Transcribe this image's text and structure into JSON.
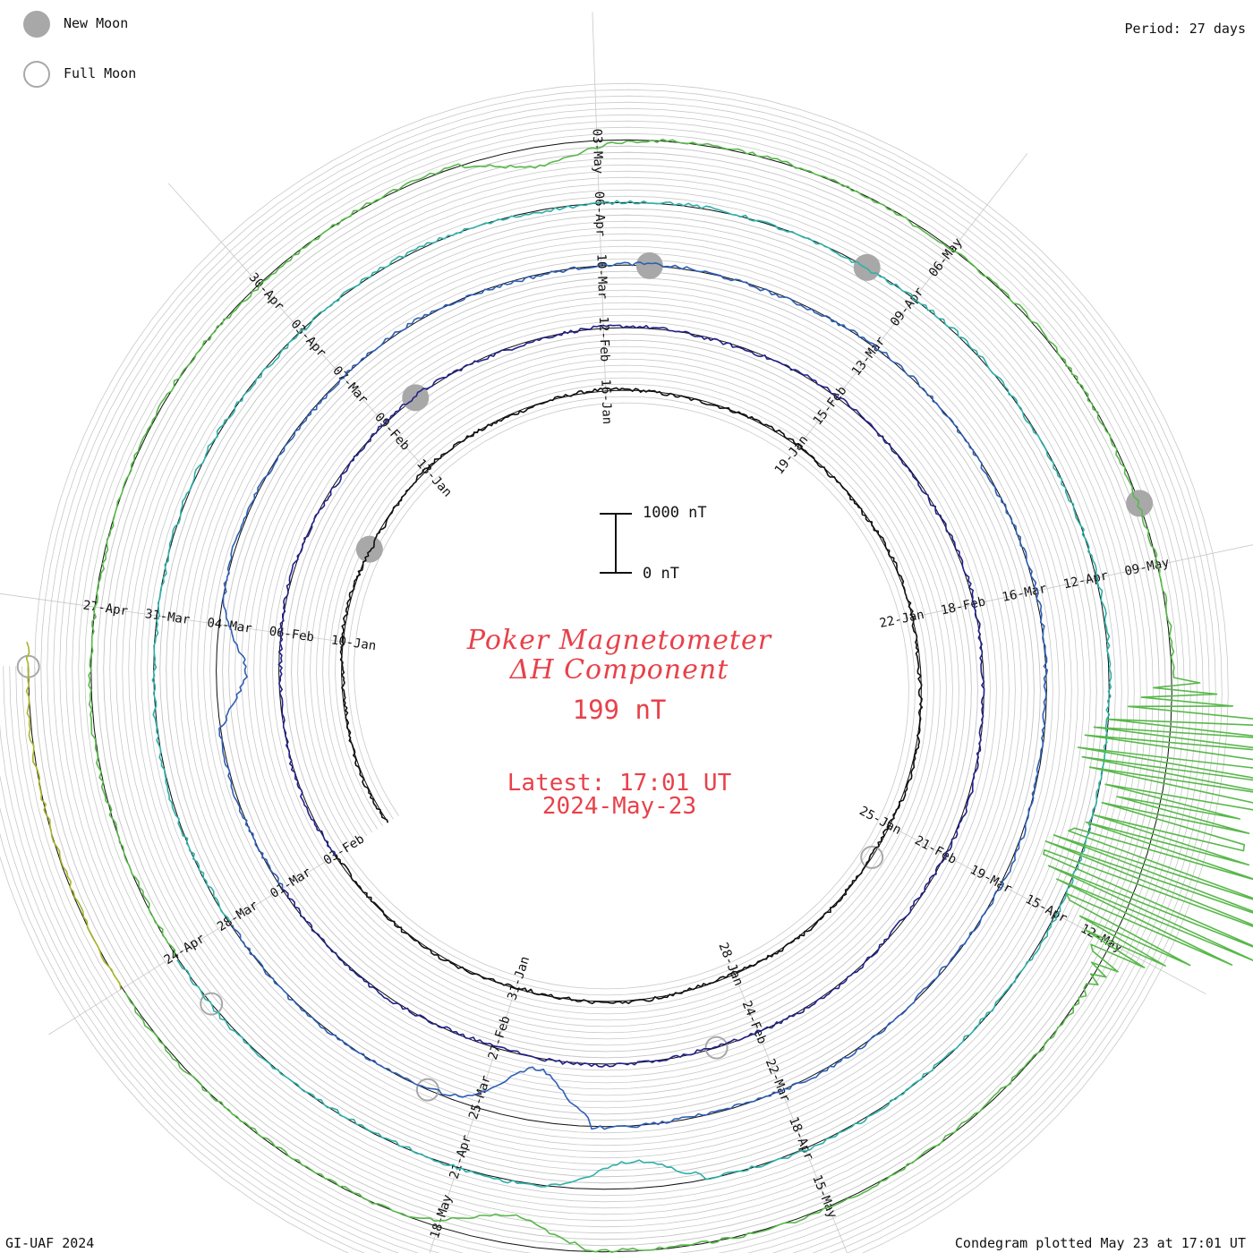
{
  "legend": {
    "new_moon_label": "New Moon",
    "full_moon_label": "Full Moon",
    "new_moon_color": "#a8a8a8",
    "full_moon_color": "#a8a8a8"
  },
  "period_label": "Period: 27 days",
  "footer_left": "GI-UAF 2024",
  "footer_right": "Condegram plotted May 23 at 17:01 UT",
  "center": {
    "title": "Poker Magnetometer",
    "component": "ΔH Component",
    "value": "199 nT",
    "latest": "Latest: 17:01 UT",
    "date": "2024-May-23",
    "color": "#e8414a"
  },
  "scale_bar": {
    "top_label": "1000 nT",
    "bottom_label": "0 nT"
  },
  "chart_data": {
    "type": "line",
    "style": "condegram (spiral)",
    "period_days": 27,
    "units": "nT",
    "start_date": "2024-01-07",
    "end_date": "2024-05-23T17:01",
    "scale_nT": [
      0,
      1000
    ],
    "colors": [
      "#111111",
      "#22228a",
      "#2f5fb5",
      "#2fb0a8",
      "#58b84a",
      "#a8b52a",
      "#b8901a",
      "#c0601a",
      "#c0280f"
    ],
    "date_labels": [
      "10-Jan",
      "13-Jan",
      "16-Jan",
      "19-Jan",
      "22-Jan",
      "25-Jan",
      "28-Jan",
      "31-Jan",
      "03-Feb",
      "06-Feb",
      "09-Feb",
      "12-Feb",
      "15-Feb",
      "18-Feb",
      "21-Feb",
      "24-Feb",
      "27-Feb",
      "01-Mar",
      "04-Mar",
      "07-Mar",
      "10-Mar",
      "13-Mar",
      "16-Mar",
      "19-Mar",
      "22-Mar",
      "25-Mar",
      "28-Mar",
      "31-Mar",
      "03-Apr",
      "06-Apr",
      "09-Apr",
      "12-Apr",
      "15-Apr",
      "18-Apr",
      "21-Apr",
      "24-Apr",
      "27-Apr",
      "30-Apr",
      "03-May",
      "06-May",
      "09-May",
      "12-May",
      "15-May",
      "18-May"
    ],
    "new_moons": [
      "2024-01-11",
      "2024-02-09",
      "2024-03-10",
      "2024-04-08",
      "2024-05-08"
    ],
    "full_moons": [
      "2024-01-25",
      "2024-02-24",
      "2024-03-25",
      "2024-04-23",
      "2024-05-23"
    ],
    "events": [
      {
        "date": "2024-03-03",
        "deflection_nT": 480
      },
      {
        "date": "2024-03-24",
        "deflection_nT": 900
      },
      {
        "date": "2024-04-19",
        "deflection_nT": 450
      },
      {
        "date": "2024-05-02",
        "deflection_nT": 300
      },
      {
        "date": "2024-05-10",
        "deflection_nT": 2500
      },
      {
        "date": "2024-05-11",
        "deflection_nT": 2800
      },
      {
        "date": "2024-05-17",
        "deflection_nT": 500
      }
    ]
  }
}
